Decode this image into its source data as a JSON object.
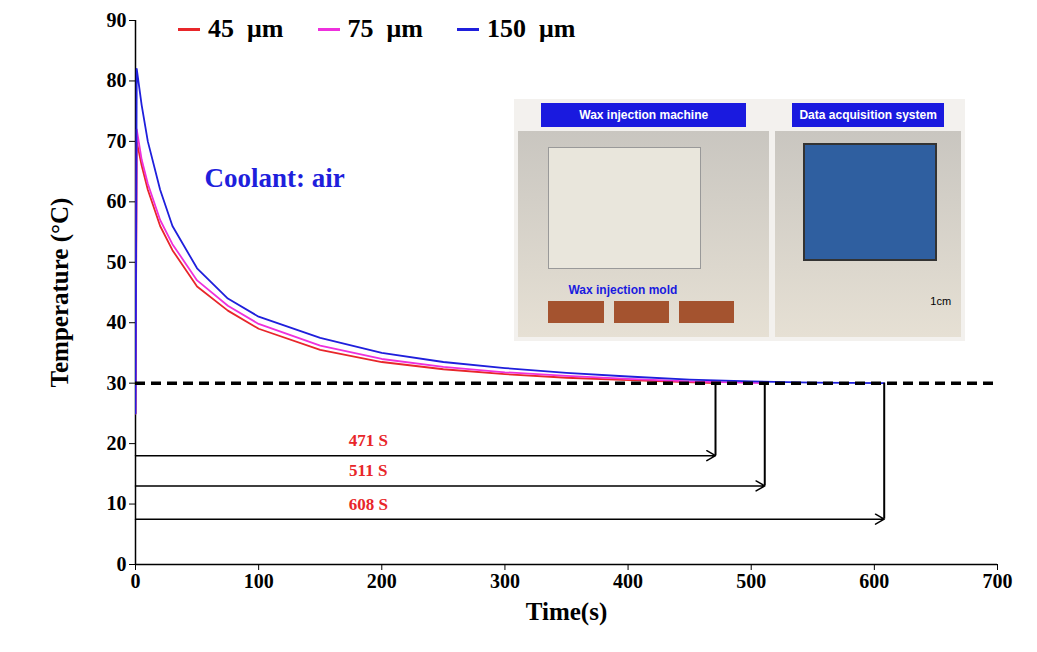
{
  "chart_data": {
    "type": "line",
    "xlabel": "Time(s)",
    "ylabel": "Temperature (°C)",
    "xlim": [
      0,
      700
    ],
    "xticks": [
      0,
      100,
      200,
      300,
      400,
      500,
      600,
      700
    ],
    "ylim": [
      0,
      90
    ],
    "yticks": [
      0,
      10,
      20,
      30,
      40,
      50,
      60,
      70,
      80,
      90
    ],
    "grid": false,
    "legend": "top",
    "text": "Coolant: air",
    "reference_line": {
      "y": 30,
      "line_style": "dashed"
    },
    "annotations": [
      {
        "text": "471 S",
        "x": 471,
        "y": 18
      },
      {
        "text": "511 S",
        "x": 511,
        "y": 13
      },
      {
        "text": "608 S",
        "x": 608,
        "y": 7.5
      }
    ],
    "inset_texts": [
      "Wax injection machine",
      "Data acquisition system",
      "Wax injection mold",
      "1cm"
    ],
    "series": [
      {
        "name": "45  μm",
        "color": "#e8262a",
        "x": [
          0,
          1,
          5,
          10,
          20,
          30,
          50,
          75,
          100,
          150,
          200,
          250,
          300,
          350,
          400,
          471
        ],
        "values": [
          25,
          70,
          66,
          62,
          56,
          52,
          46,
          42,
          39,
          35.5,
          33.5,
          32.3,
          31.5,
          30.9,
          30.5,
          30
        ]
      },
      {
        "name": "75  μm",
        "color": "#ee30dd",
        "x": [
          0,
          1,
          5,
          10,
          20,
          30,
          50,
          75,
          100,
          150,
          200,
          250,
          300,
          350,
          400,
          450,
          511
        ],
        "values": [
          25,
          72,
          67,
          63,
          57,
          53,
          47,
          42.8,
          39.8,
          36.2,
          34,
          32.7,
          31.8,
          31.2,
          30.7,
          30.3,
          30
        ]
      },
      {
        "name": "150  μm",
        "color": "#1f1fdc",
        "x": [
          0,
          1,
          5,
          10,
          20,
          30,
          50,
          75,
          100,
          150,
          200,
          250,
          300,
          350,
          400,
          450,
          500,
          550,
          608
        ],
        "values": [
          25,
          82,
          76,
          70,
          62,
          56,
          49,
          44,
          41,
          37.5,
          35,
          33.5,
          32.5,
          31.7,
          31.1,
          30.6,
          30.3,
          30.1,
          30
        ]
      }
    ]
  }
}
